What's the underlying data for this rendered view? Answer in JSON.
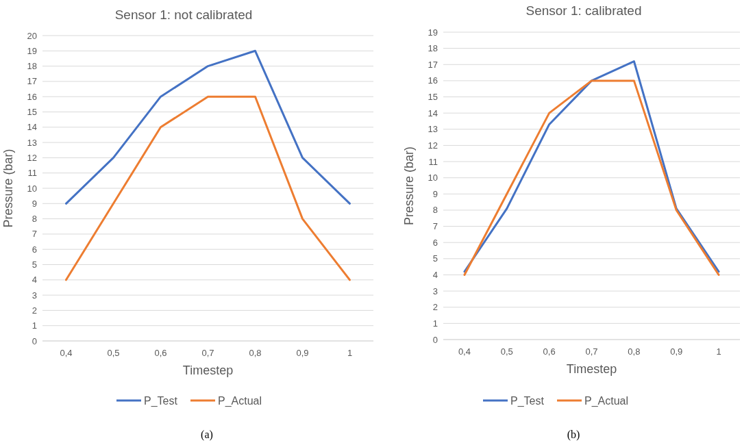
{
  "chart_data": [
    {
      "type": "line",
      "title": "Sensor 1: not calibrated",
      "xlabel": "Timestep",
      "ylabel": "Pressure (bar)",
      "categories": [
        "0,4",
        "0,5",
        "0,6",
        "0,7",
        "0,8",
        "0,9",
        "1"
      ],
      "series": [
        {
          "name": "P_Test",
          "color": "#4472c4",
          "values": [
            9,
            12,
            16,
            18,
            19,
            12,
            9
          ]
        },
        {
          "name": "P_Actual",
          "color": "#ed7d31",
          "values": [
            4,
            9,
            14,
            16,
            16,
            8,
            4
          ]
        }
      ],
      "ylim": [
        0,
        20
      ],
      "yticks": [
        0,
        1,
        2,
        3,
        4,
        5,
        6,
        7,
        8,
        9,
        10,
        11,
        12,
        13,
        14,
        15,
        16,
        17,
        18,
        19,
        20
      ],
      "grid": "y",
      "legend": "bottom",
      "annotations": [
        "(a)"
      ]
    },
    {
      "type": "line",
      "title": "Sensor 1: calibrated",
      "xlabel": "Timestep",
      "ylabel": "Pressure (bar)",
      "categories": [
        "0,4",
        "0,5",
        "0,6",
        "0,7",
        "0,8",
        "0,9",
        "1"
      ],
      "series": [
        {
          "name": "P_Test",
          "color": "#4472c4",
          "values": [
            4.2,
            8.1,
            13.3,
            16,
            17.2,
            8.1,
            4.2
          ]
        },
        {
          "name": "P_Actual",
          "color": "#ed7d31",
          "values": [
            4,
            9,
            14,
            16,
            16,
            8,
            4
          ]
        }
      ],
      "ylim": [
        0,
        19
      ],
      "yticks": [
        0,
        1,
        2,
        3,
        4,
        5,
        6,
        7,
        8,
        9,
        10,
        11,
        12,
        13,
        14,
        15,
        16,
        17,
        18,
        19
      ],
      "grid": "y",
      "legend": "bottom",
      "annotations": [
        "(b)"
      ]
    }
  ]
}
